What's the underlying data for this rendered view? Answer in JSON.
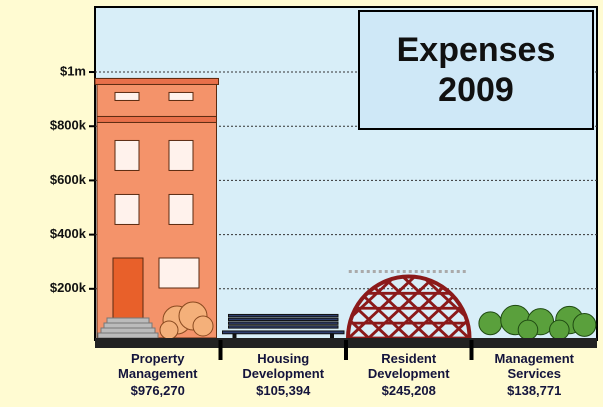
{
  "chart_data": {
    "type": "bar",
    "title": "Expenses 2009",
    "categories": [
      "Property Management",
      "Housing Development",
      "Resident Development",
      "Management Services"
    ],
    "values": [
      976270,
      105394,
      245208,
      138771
    ],
    "value_labels": [
      "$976,270",
      "$105,394",
      "$245,208",
      "$138,771"
    ],
    "colors": [
      "#f4936a",
      "#2e3e6e",
      "#8b1a1a",
      "#5aa03c"
    ],
    "ylim": [
      0,
      1240000
    ],
    "yticks": [
      {
        "value": 200000,
        "label": "$200k"
      },
      {
        "value": 400000,
        "label": "$400k"
      },
      {
        "value": 600000,
        "label": "$600k"
      },
      {
        "value": 800000,
        "label": "$800k"
      },
      {
        "value": 1000000,
        "label": "$1m"
      }
    ],
    "grid": true
  }
}
